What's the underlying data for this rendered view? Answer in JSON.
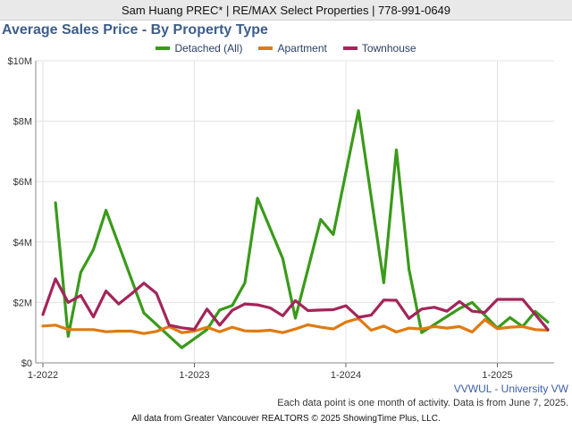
{
  "header": {
    "banner": "Sam Huang PREC* | RE/MAX Select Properties | 778-991-0649"
  },
  "notes": {
    "area": "VVWUL - University VW",
    "note": "Each data point is one month of activity. Data is from June 7, 2025.",
    "copyright": "All data from Greater Vancouver REALTORS © 2025 ShowingTime Plus, LLC."
  },
  "chart_data": {
    "type": "line",
    "title": "Average Sales Price - By Property Type",
    "xlabel": "",
    "ylabel": "",
    "x_start": "1-2022",
    "x_end": "5-2025",
    "x_ticks": [
      "1-2022",
      "1-2023",
      "1-2024",
      "1-2025"
    ],
    "y_ticks": [
      "$0",
      "$2M",
      "$4M",
      "$6M",
      "$8M",
      "$10M"
    ],
    "ylim": [
      0,
      10000000
    ],
    "grid": true,
    "legend_position": "top-center",
    "series": [
      {
        "name": "Detached (All)",
        "color": "#3a9a1a",
        "values": [
          null,
          5300000,
          880000,
          3000000,
          3750000,
          5050000,
          null,
          null,
          1650000,
          null,
          null,
          500000,
          null,
          1100000,
          1750000,
          1900000,
          2650000,
          5450000,
          null,
          3450000,
          1480000,
          null,
          4750000,
          4250000,
          null,
          8350000,
          null,
          2650000,
          7050000,
          3100000,
          1000000,
          null,
          null,
          1800000,
          2000000,
          null,
          1150000,
          1500000,
          1200000,
          1700000,
          1350000
        ]
      },
      {
        "name": "Apartment",
        "color": "#e07a10",
        "values": [
          1220000,
          1250000,
          1100000,
          1100000,
          1100000,
          1030000,
          1050000,
          1050000,
          970000,
          1040000,
          1200000,
          1000000,
          1050000,
          1180000,
          1030000,
          1180000,
          1060000,
          1050000,
          1080000,
          1000000,
          1120000,
          1260000,
          1180000,
          1120000,
          1350000,
          1470000,
          1080000,
          1220000,
          1020000,
          1150000,
          1120000,
          1200000,
          1150000,
          1200000,
          1020000,
          1430000,
          1130000,
          1180000,
          1200000,
          1100000,
          1080000
        ]
      },
      {
        "name": "Townhouse",
        "color": "#a3255a",
        "values": [
          1600000,
          2780000,
          2000000,
          2230000,
          1520000,
          2380000,
          1950000,
          2280000,
          2640000,
          2300000,
          1250000,
          1160000,
          1110000,
          1780000,
          1250000,
          1740000,
          1950000,
          1920000,
          1820000,
          1560000,
          2060000,
          1730000,
          1750000,
          1760000,
          1890000,
          1510000,
          1580000,
          2080000,
          2070000,
          1470000,
          1780000,
          1840000,
          1710000,
          2030000,
          1710000,
          1670000,
          2100000,
          2100000,
          2100000,
          1600000,
          1100000
        ]
      }
    ]
  }
}
